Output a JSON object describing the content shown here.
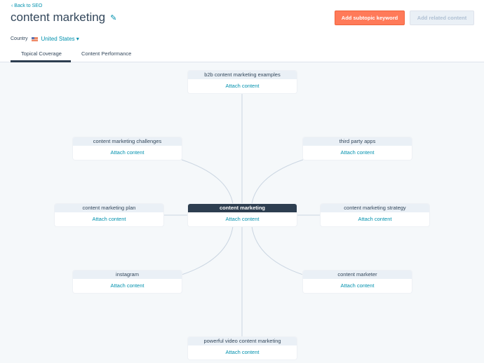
{
  "header": {
    "back_link": "Back to SEO",
    "title": "content marketing",
    "country_label": "Country",
    "country_value": "United States",
    "primary_button": "Add subtopic keyword",
    "secondary_button": "Add related content"
  },
  "tabs": [
    {
      "label": "Topical Coverage",
      "active": true
    },
    {
      "label": "Content Performance",
      "active": false
    }
  ],
  "map": {
    "center": {
      "keyword": "content marketing",
      "action": "Attach content"
    },
    "subtopics": [
      {
        "keyword": "b2b content marketing examples",
        "action": "Attach content"
      },
      {
        "keyword": "content marketing challenges",
        "action": "Attach content"
      },
      {
        "keyword": "third party apps",
        "action": "Attach content"
      },
      {
        "keyword": "content marketing plan",
        "action": "Attach content"
      },
      {
        "keyword": "content marketing strategy",
        "action": "Attach content"
      },
      {
        "keyword": "instagram",
        "action": "Attach content"
      },
      {
        "keyword": "content marketer",
        "action": "Attach content"
      },
      {
        "keyword": "powerful video content marketing",
        "action": "Attach content"
      }
    ]
  },
  "colors": {
    "accent": "#ff7a59",
    "link": "#0091ae",
    "center_node": "#2d3e50"
  }
}
